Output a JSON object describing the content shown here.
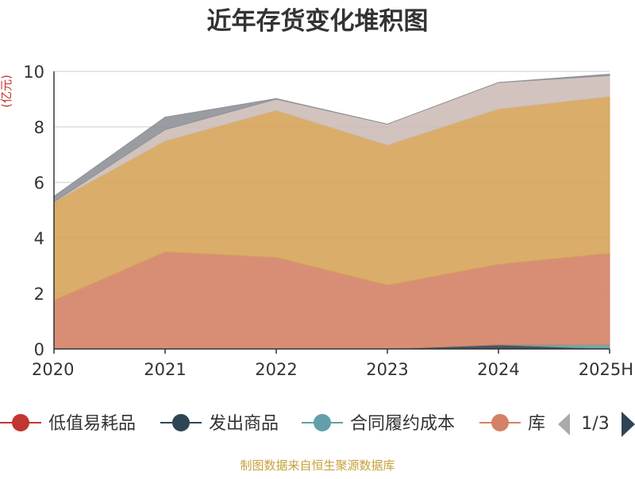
{
  "chart_data": {
    "type": "area",
    "stacked": true,
    "title": "近年存货变化堆积图",
    "ylabel": "(亿元)",
    "xlabel": "",
    "categories": [
      "2020",
      "2021",
      "2022",
      "2023",
      "2024",
      "2025H"
    ],
    "ylim": [
      0,
      10
    ],
    "yticks": [
      0,
      2,
      4,
      6,
      8,
      10
    ],
    "grid": true,
    "series": [
      {
        "name": "低值易耗品",
        "color": "#c23531",
        "values": [
          0,
          0,
          0,
          0,
          0,
          0
        ]
      },
      {
        "name": "发出商品",
        "color": "#2f4554",
        "values": [
          0,
          0,
          0,
          0,
          0.15,
          0
        ]
      },
      {
        "name": "合同履约成本",
        "color": "#61a0a8",
        "values": [
          0,
          0,
          0,
          0,
          0,
          0.15
        ]
      },
      {
        "name": "库",
        "color": "#d48265",
        "values": [
          1.75,
          3.5,
          3.3,
          2.3,
          2.9,
          3.3
        ]
      },
      {
        "color": "#d6a45a",
        "values": [
          3.55,
          4.0,
          5.3,
          5.05,
          5.6,
          5.65
        ]
      },
      {
        "color": "#cdbdb8",
        "values": [
          0.0,
          0.4,
          0.4,
          0.75,
          0.95,
          0.75
        ]
      },
      {
        "color": "#8e9297",
        "values": [
          0.2,
          0.45,
          0.02,
          0.0,
          0.0,
          0.05
        ]
      }
    ],
    "legend": {
      "placement": "bottom",
      "page": "1/3",
      "visible_items": [
        "低值易耗品",
        "发出商品",
        "合同履约成本",
        "库"
      ]
    },
    "source": "制图数据来自恒生聚源数据库"
  },
  "colors": {
    "title": "#333333",
    "axis_label": "#c23531",
    "axis_text": "#333333",
    "grid": "#cccccc",
    "legend_text": "#333333",
    "pager_active": "#2f4554",
    "pager_inactive": "#aaaaaa",
    "source": "#c8a03c"
  },
  "icons": {
    "pager_prev": "triangle-left-icon",
    "pager_next": "triangle-right-icon"
  }
}
